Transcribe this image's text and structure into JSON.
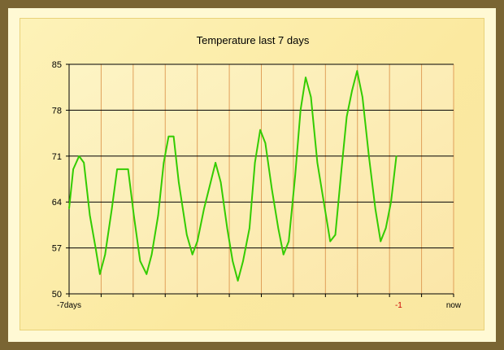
{
  "chart_data": {
    "type": "line",
    "title": "Temperature last 7 days",
    "xlabel": "",
    "ylabel": "",
    "ylim": [
      50,
      85
    ],
    "yticks": [
      50,
      57,
      64,
      71,
      78,
      85
    ],
    "xlim": [
      -7,
      0
    ],
    "xticks": [
      {
        "value": -7,
        "label": "-7days",
        "color": "#000000"
      },
      {
        "value": -1,
        "label": "-1",
        "color": "#cc0000"
      },
      {
        "value": 0,
        "label": "now",
        "color": "#000000"
      }
    ],
    "vgrid_count": 12,
    "grid": true,
    "series": [
      {
        "color": "#33cc00",
        "points": [
          [
            -7.0,
            63
          ],
          [
            -6.925,
            69
          ],
          [
            -6.818,
            71
          ],
          [
            -6.731,
            70
          ],
          [
            -6.623,
            62
          ],
          [
            -6.517,
            57
          ],
          [
            -6.439,
            53
          ],
          [
            -6.344,
            56
          ],
          [
            -6.221,
            63
          ],
          [
            -6.126,
            69
          ],
          [
            -5.925,
            69
          ],
          [
            -5.822,
            62
          ],
          [
            -5.707,
            55
          ],
          [
            -5.59,
            53
          ],
          [
            -5.497,
            56
          ],
          [
            -5.378,
            62
          ],
          [
            -5.277,
            70
          ],
          [
            -5.189,
            74
          ],
          [
            -5.097,
            74
          ],
          [
            -5.004,
            67
          ],
          [
            -4.857,
            59
          ],
          [
            -4.755,
            56
          ],
          [
            -4.664,
            58
          ],
          [
            -4.543,
            63
          ],
          [
            -4.424,
            67
          ],
          [
            -4.335,
            70
          ],
          [
            -4.238,
            67
          ],
          [
            -4.121,
            60
          ],
          [
            -4.022,
            55
          ],
          [
            -3.927,
            52
          ],
          [
            -3.833,
            55
          ],
          [
            -3.716,
            60
          ],
          [
            -3.617,
            70
          ],
          [
            -3.52,
            75
          ],
          [
            -3.428,
            73
          ],
          [
            -3.309,
            66
          ],
          [
            -3.192,
            60
          ],
          [
            -3.097,
            56
          ],
          [
            -3.002,
            58
          ],
          [
            -2.884,
            68
          ],
          [
            -2.786,
            78
          ],
          [
            -2.693,
            83
          ],
          [
            -2.597,
            80
          ],
          [
            -2.48,
            70
          ],
          [
            -2.363,
            64
          ],
          [
            -2.247,
            58
          ],
          [
            -2.153,
            59
          ],
          [
            -2.041,
            69
          ],
          [
            -1.946,
            77
          ],
          [
            -1.848,
            81
          ],
          [
            -1.756,
            84
          ],
          [
            -1.659,
            80
          ],
          [
            -1.542,
            71
          ],
          [
            -1.425,
            63
          ],
          [
            -1.329,
            58
          ],
          [
            -1.234,
            60
          ],
          [
            -1.14,
            64
          ],
          [
            -1.042,
            71
          ]
        ]
      }
    ]
  }
}
